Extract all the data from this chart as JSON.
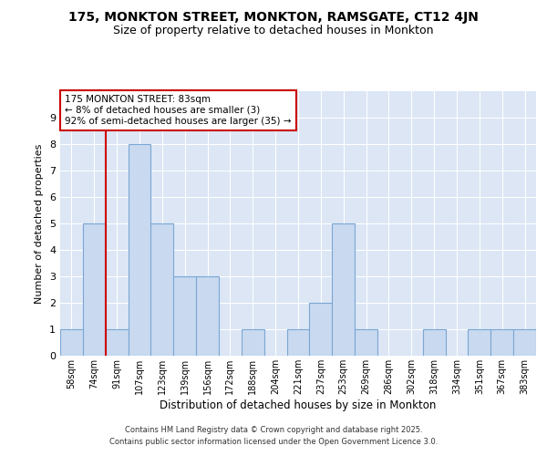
{
  "title": "175, MONKTON STREET, MONKTON, RAMSGATE, CT12 4JN",
  "subtitle": "Size of property relative to detached houses in Monkton",
  "xlabel": "Distribution of detached houses by size in Monkton",
  "ylabel": "Number of detached properties",
  "categories": [
    "58sqm",
    "74sqm",
    "91sqm",
    "107sqm",
    "123sqm",
    "139sqm",
    "156sqm",
    "172sqm",
    "188sqm",
    "204sqm",
    "221sqm",
    "237sqm",
    "253sqm",
    "269sqm",
    "286sqm",
    "302sqm",
    "318sqm",
    "334sqm",
    "351sqm",
    "367sqm",
    "383sqm"
  ],
  "values": [
    1,
    5,
    1,
    8,
    5,
    3,
    3,
    0,
    1,
    0,
    1,
    2,
    5,
    1,
    0,
    0,
    1,
    0,
    1,
    1,
    1
  ],
  "bar_color": "#c8d9f0",
  "bar_edge_color": "#7ba7d4",
  "plot_bg_color": "#dce6f5",
  "fig_bg_color": "#ffffff",
  "grid_color": "#ffffff",
  "vline_color": "#cc0000",
  "vline_x": 1.5,
  "annotation_text": "175 MONKTON STREET: 83sqm\n← 8% of detached houses are smaller (3)\n92% of semi-detached houses are larger (35) →",
  "annotation_box_edge_color": "#cc0000",
  "annotation_box_face_color": "#ffffff",
  "ylim": [
    0,
    10
  ],
  "yticks": [
    0,
    1,
    2,
    3,
    4,
    5,
    6,
    7,
    8,
    9,
    10
  ],
  "footer_line1": "Contains HM Land Registry data © Crown copyright and database right 2025.",
  "footer_line2": "Contains public sector information licensed under the Open Government Licence 3.0."
}
